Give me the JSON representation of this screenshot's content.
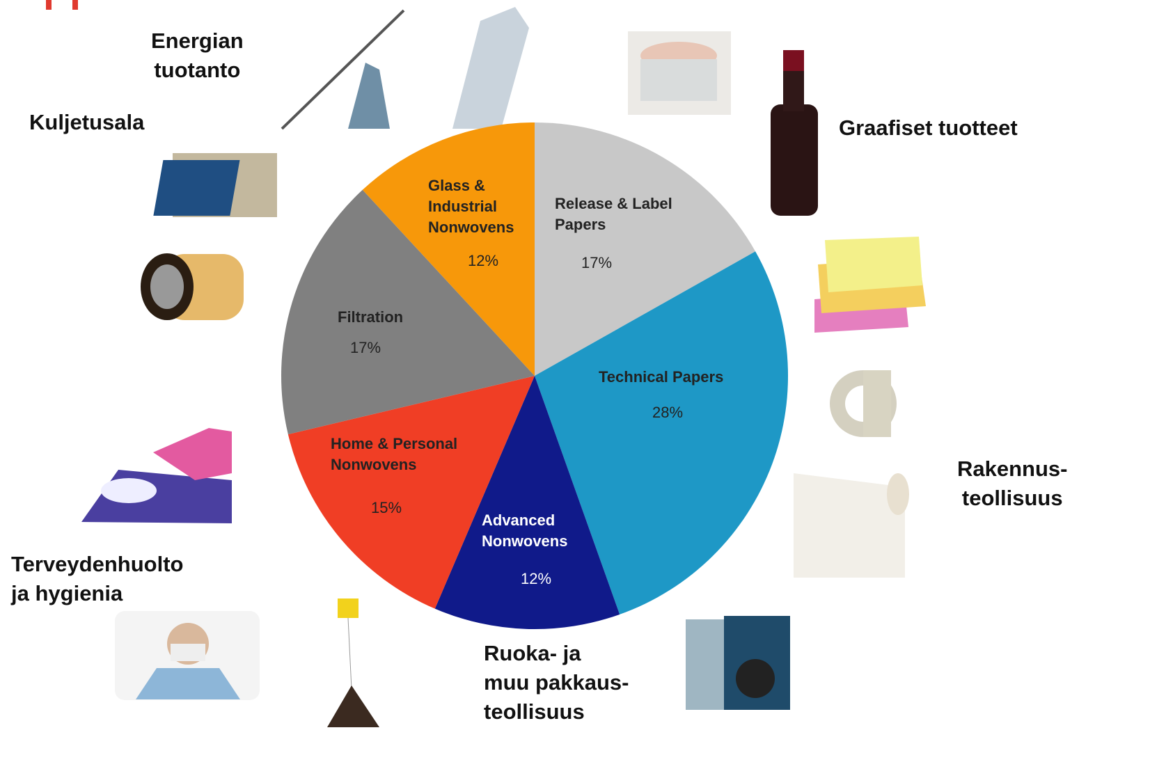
{
  "chart_data": {
    "type": "pie",
    "categories": [
      "Release & Label\nPapers",
      "Technical Papers",
      "Advanced\nNonwovens",
      "Home & Personal\nNonwovens",
      "Filtration",
      "Glass &\nIndustrial\nNonwovens"
    ],
    "values": [
      17,
      28,
      12,
      15,
      17,
      12
    ],
    "value_labels": [
      "17%",
      "28%",
      "12%",
      "15%",
      "17%",
      "12%"
    ],
    "colors": [
      "#c8c8c8",
      "#1e98c6",
      "#101a8a",
      "#f03e25",
      "#808080",
      "#f7980a"
    ],
    "annotations": [
      "Energian\ntuotanto",
      "Kuljetusala",
      "Graafiset tuotteet",
      "Rakennus-\nteollisuus",
      "Terveydenhuolto\nja hygienia",
      "Ruoka- ja\nmuu pakkaus-\nteollisuus"
    ]
  }
}
